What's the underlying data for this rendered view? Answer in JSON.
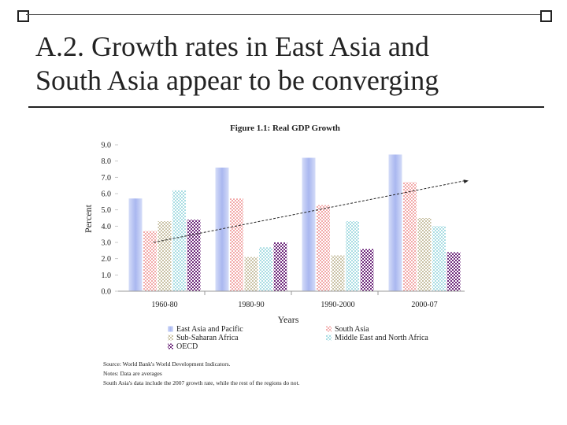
{
  "slide": {
    "title_line1": "A.2. Growth rates in East Asia and",
    "title_line2": "South Asia appear to be converging"
  },
  "chart_data": {
    "type": "bar",
    "title": "Figure 1.1: Real GDP Growth",
    "xlabel": "Years",
    "ylabel": "Percent",
    "categories": [
      "1960-80",
      "1980-90",
      "1990-2000",
      "2000-07"
    ],
    "ylim": [
      0,
      9
    ],
    "yticks": [
      "0.0",
      "1.0",
      "2.0",
      "3.0",
      "4.0",
      "5.0",
      "6.0",
      "7.0",
      "8.0",
      "9.0"
    ],
    "grid": false,
    "legend_position": "bottom",
    "series": [
      {
        "name": "East Asia and Pacific",
        "values": [
          5.7,
          7.6,
          8.2,
          8.4
        ],
        "color": "#a9b7f0",
        "pattern": "solid"
      },
      {
        "name": "South Asia",
        "values": [
          3.7,
          5.7,
          5.3,
          6.7
        ],
        "color": "#f2a9a9",
        "pattern": "checker"
      },
      {
        "name": "Sub-Saharan Africa",
        "values": [
          4.3,
          2.1,
          2.2,
          4.5
        ],
        "color": "#c9c2a5",
        "pattern": "checker"
      },
      {
        "name": "Middle East and North Africa",
        "values": [
          6.2,
          2.7,
          4.3,
          4.0
        ],
        "color": "#a9dde3",
        "pattern": "checker"
      },
      {
        "name": "OECD",
        "values": [
          4.4,
          3.0,
          2.6,
          2.4
        ],
        "color": "#6e2a7c",
        "pattern": "checker"
      }
    ],
    "trendline": {
      "style": "dashed",
      "x": [
        "1960-80",
        "2000-07"
      ],
      "y": [
        3.0,
        6.8
      ]
    },
    "notes": [
      "Source: World Bank's World Development Indicators.",
      "Notes: Data are averages",
      "South Asia's data include the 2007 growth rate, while the rest of the regions do not."
    ]
  },
  "colors": {
    "title_text": "#222222",
    "rule": "#222222"
  }
}
